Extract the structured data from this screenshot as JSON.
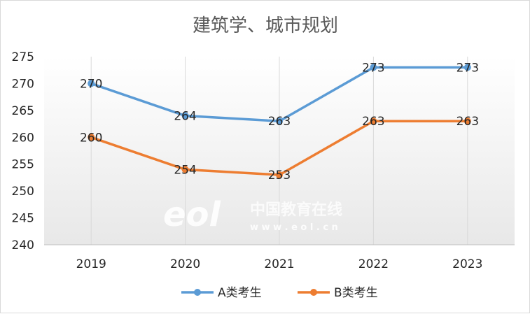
{
  "chart_data": {
    "type": "line",
    "title": "建筑学、城市规划",
    "categories": [
      "2019",
      "2020",
      "2021",
      "2022",
      "2023"
    ],
    "series": [
      {
        "name": "A类考生",
        "color": "#5b9bd5",
        "values": [
          270,
          264,
          263,
          273,
          273
        ]
      },
      {
        "name": "B类考生",
        "color": "#ed7d31",
        "values": [
          260,
          254,
          253,
          263,
          263
        ]
      }
    ],
    "ylim": [
      240,
      275
    ],
    "yticks": [
      240,
      245,
      250,
      255,
      260,
      265,
      270,
      275
    ],
    "grid": "vertical",
    "legend": "bottom",
    "data_labels": true
  },
  "watermark": {
    "logo": "eol",
    "cn": "中国教育在线",
    "url": "w w w . e o l . c n"
  }
}
